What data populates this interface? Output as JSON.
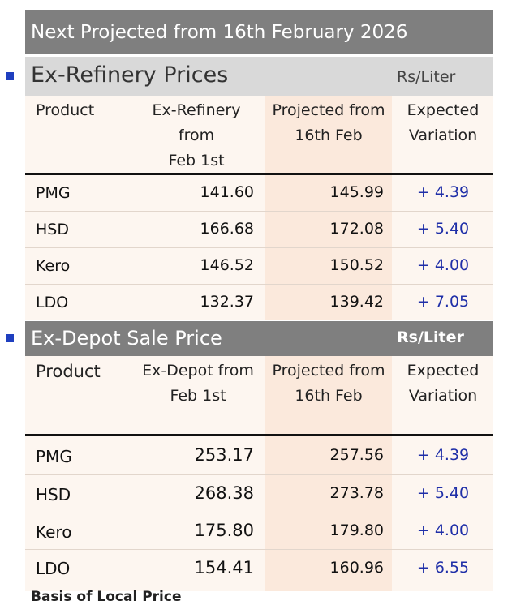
{
  "title": "Next Projected from 16th February 2026",
  "ex_refinery": {
    "heading": "Ex-Refinery Prices",
    "unit": "Rs/Liter",
    "columns": {
      "product": "Product",
      "current": [
        "Ex-Refinery",
        "from",
        "Feb 1st"
      ],
      "projected": [
        "Projected from",
        "16th Feb"
      ],
      "variation": [
        "Expected",
        "Variation"
      ]
    },
    "rows": [
      {
        "product": "PMG",
        "current": "141.60",
        "projected": "145.99",
        "variation": "+ 4.39"
      },
      {
        "product": "HSD",
        "current": "166.68",
        "projected": "172.08",
        "variation": "+ 5.40"
      },
      {
        "product": "Kero",
        "current": "146.52",
        "projected": "150.52",
        "variation": "+ 4.00"
      },
      {
        "product": "LDO",
        "current": "132.37",
        "projected": "139.42",
        "variation": "+ 7.05"
      }
    ]
  },
  "ex_depot": {
    "heading": "Ex-Depot Sale Price",
    "unit": "Rs/Liter",
    "columns": {
      "product": "Product",
      "current": [
        "Ex-Depot from",
        "Feb 1st"
      ],
      "projected": [
        "Projected from",
        "16th Feb"
      ],
      "variation": [
        "Expected",
        "Variation"
      ]
    },
    "rows": [
      {
        "product": "PMG",
        "current": "253.17",
        "projected": "257.56",
        "variation": "+ 4.39"
      },
      {
        "product": "HSD",
        "current": "268.38",
        "projected": "273.78",
        "variation": "+ 5.40"
      },
      {
        "product": "Kero",
        "current": "175.80",
        "projected": "179.80",
        "variation": "+ 4.00"
      },
      {
        "product": "LDO",
        "current": "154.41",
        "projected": "160.96",
        "variation": "+ 6.55"
      }
    ]
  },
  "footer_partial": "Basis of Local Price",
  "colors": {
    "bar_gray": "#7f7f7f",
    "light_gray": "#d9d9d9",
    "highlight": "#fbe9dc",
    "variation_blue": "#1f2fa8",
    "bullet_blue": "#1f3fbf"
  }
}
